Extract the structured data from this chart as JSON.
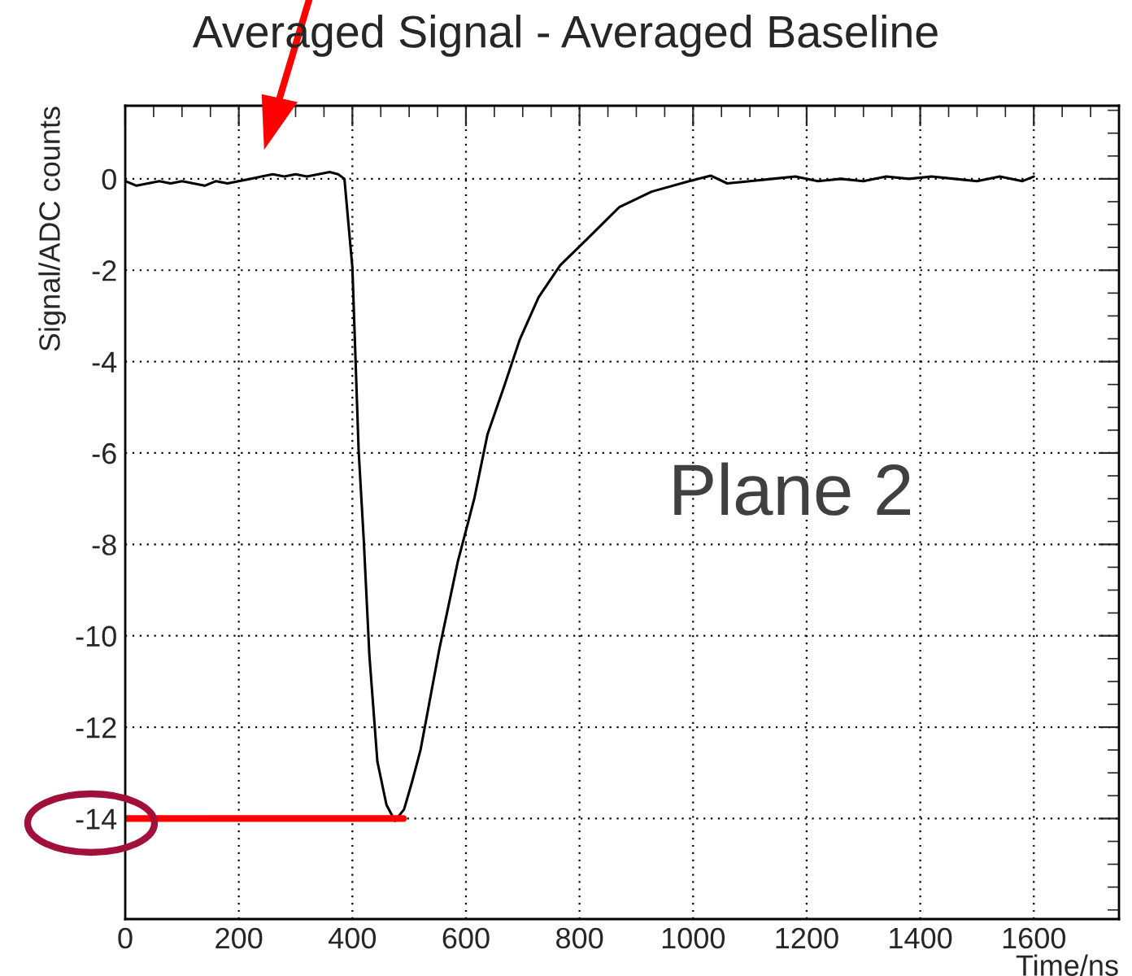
{
  "chart_data": {
    "type": "line",
    "title": "Averaged Signal - Averaged Baseline",
    "xlabel": "Time/ns",
    "ylabel": "Signal/ADC counts",
    "series": [
      {
        "color": "#000000",
        "x": [
          0,
          20,
          40,
          60,
          80,
          100,
          120,
          140,
          160,
          180,
          200,
          220,
          240,
          260,
          280,
          300,
          320,
          340,
          360,
          375,
          386,
          400,
          411,
          420,
          430,
          444,
          460,
          475,
          491,
          505,
          520,
          535,
          553,
          570,
          586,
          600,
          615,
          638,
          667,
          695,
          728,
          766,
          813,
          870,
          927,
          993,
          1031,
          1060,
          1100,
          1140,
          1180,
          1220,
          1260,
          1300,
          1340,
          1380,
          1420,
          1460,
          1500,
          1540,
          1580,
          1600
        ],
        "values": [
          -0.05,
          -0.15,
          -0.1,
          -0.05,
          -0.1,
          -0.05,
          -0.1,
          -0.15,
          -0.05,
          -0.1,
          -0.05,
          0.0,
          0.05,
          0.1,
          0.05,
          0.1,
          0.05,
          0.1,
          0.15,
          0.1,
          0.0,
          -1.94,
          -5.94,
          -7.9,
          -10.44,
          -12.75,
          -13.7,
          -14.05,
          -13.8,
          -13.2,
          -12.5,
          -11.5,
          -10.3,
          -9.3,
          -8.36,
          -7.7,
          -6.98,
          -5.59,
          -4.55,
          -3.51,
          -2.59,
          -1.89,
          -1.32,
          -0.62,
          -0.28,
          -0.05,
          0.07,
          -0.1,
          -0.05,
          0.0,
          0.05,
          -0.05,
          0.0,
          -0.05,
          0.05,
          0.0,
          0.05,
          0.0,
          -0.05,
          0.05,
          -0.05,
          0.05
        ]
      },
      {
        "color": "#ff0000",
        "x": [
          0,
          490
        ],
        "values": [
          -14,
          -14
        ]
      }
    ],
    "annotations": [
      "Plane 2"
    ],
    "xlim": [
      0,
      1750
    ],
    "ylim": [
      -16.2,
      1.6
    ],
    "xticks": [
      0,
      200,
      400,
      600,
      800,
      1000,
      1200,
      1400,
      1600
    ],
    "yticks": [
      0,
      -2,
      -4,
      -6,
      -8,
      -10,
      -12,
      -14
    ],
    "grid": true,
    "marker": "none",
    "line_style": "solid"
  }
}
